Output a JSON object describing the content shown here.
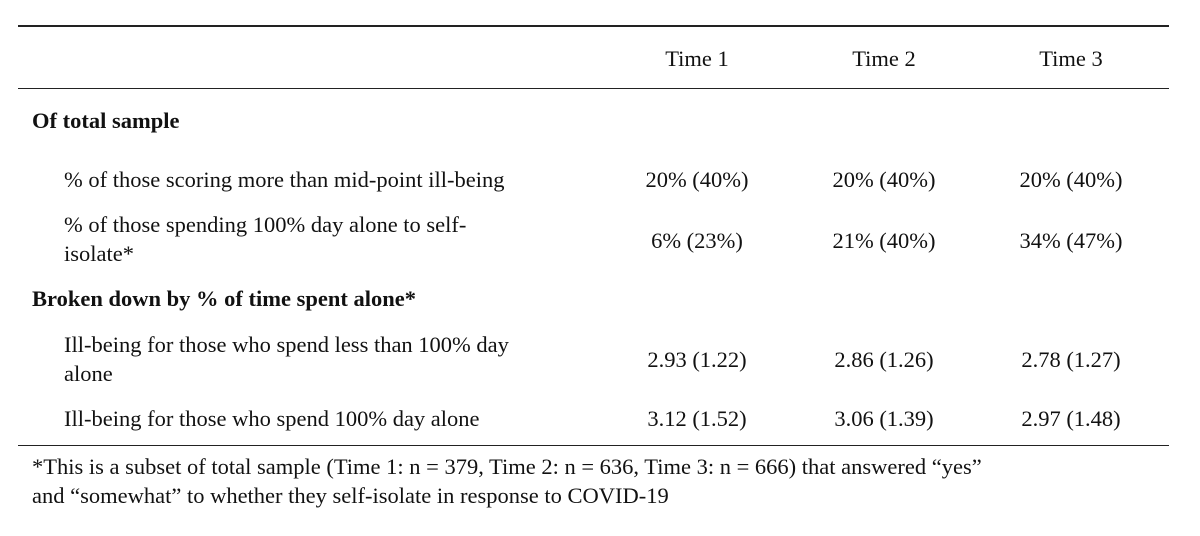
{
  "table": {
    "columns": [
      "Time 1",
      "Time 2",
      "Time 3"
    ],
    "sections": [
      {
        "heading": "Of total sample",
        "rows": [
          {
            "label": "% of those scoring more than mid-point ill-being",
            "values": [
              "20% (40%)",
              "20% (40%)",
              "20% (40%)"
            ]
          },
          {
            "label_line1": "% of those spending 100% day alone to self-",
            "label_line2": "isolate*",
            "values": [
              "6% (23%)",
              "21% (40%)",
              "34% (47%)"
            ]
          }
        ]
      },
      {
        "heading": "Broken down by % of time spent alone*",
        "rows": [
          {
            "label_line1": "Ill-being for those who spend less than 100% day",
            "label_line2": "alone",
            "values": [
              "2.93 (1.22)",
              "2.86 (1.26)",
              "2.78 (1.27)"
            ]
          },
          {
            "label": "Ill-being for those who spend 100% day alone",
            "values": [
              "3.12 (1.52)",
              "3.06 (1.39)",
              "2.97 (1.48)"
            ]
          }
        ]
      }
    ],
    "footnote_line1": "*This is a subset of total sample (Time 1: n = 379, Time 2: n = 636, Time 3: n = 666) that answered “yes”",
    "footnote_line2": "and “somewhat” to whether they self-isolate in response to COVID-19"
  }
}
